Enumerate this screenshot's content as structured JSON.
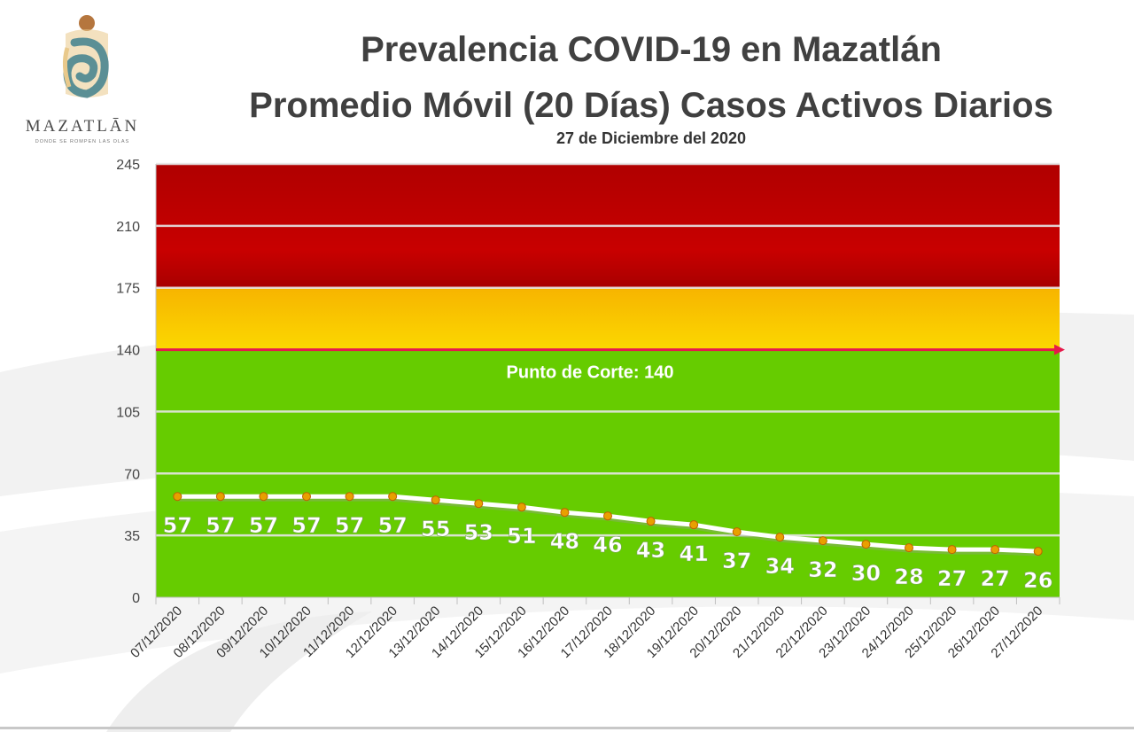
{
  "header": {
    "title": "Prevalencia COVID-19 en Mazatlán",
    "subtitle": "Promedio Móvil (20 Días) Casos Activos Diarios",
    "date": "27 de Diciembre del 2020"
  },
  "logo": {
    "name": "MAZATLĀN",
    "tagline": "DONDE SE ROMPEN LAS OLAS",
    "colors": [
      "#b5763e",
      "#5b8f95",
      "#e9c98b"
    ]
  },
  "chart_data": {
    "type": "line",
    "categories": [
      "07/12/2020",
      "08/12/2020",
      "09/12/2020",
      "10/12/2020",
      "11/12/2020",
      "12/12/2020",
      "13/12/2020",
      "14/12/2020",
      "15/12/2020",
      "16/12/2020",
      "17/12/2020",
      "18/12/2020",
      "19/12/2020",
      "20/12/2020",
      "21/12/2020",
      "22/12/2020",
      "23/12/2020",
      "24/12/2020",
      "25/12/2020",
      "26/12/2020",
      "27/12/2020"
    ],
    "values": [
      57,
      57,
      57,
      57,
      57,
      57,
      55,
      53,
      51,
      48,
      46,
      43,
      41,
      37,
      34,
      32,
      30,
      28,
      27,
      27,
      26
    ],
    "ylim": [
      0,
      245
    ],
    "yticks": [
      0,
      35,
      70,
      105,
      140,
      175,
      210,
      245
    ],
    "grid": true,
    "bands": [
      {
        "from": 0,
        "to": 140,
        "color": "#66cc00"
      },
      {
        "from": 140,
        "to": 175,
        "color": "#f5c400"
      },
      {
        "from": 175,
        "to": 245,
        "color": "#b80000"
      }
    ],
    "threshold": {
      "value": 140,
      "label": "Punto de Corte: 140",
      "color": "#e6194b"
    },
    "line_color": "#ffffff",
    "marker_color": "#e8a000"
  }
}
